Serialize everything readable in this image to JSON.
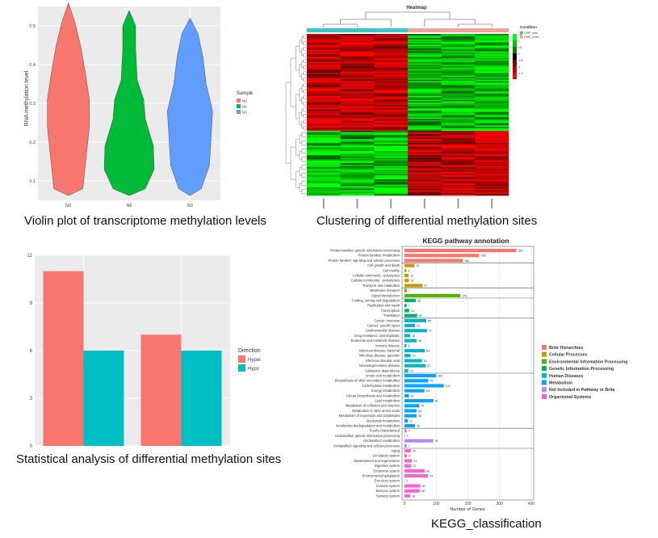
{
  "captions": {
    "violin": "Violin plot of transcriptome methylation levels",
    "heatmap": "Clustering of differential methylation sites",
    "bar": "Statistical analysis of differential methylation sites",
    "kegg": "KEGG_classification"
  },
  "chart_data": [
    {
      "type": "violin",
      "ylabel": "RNA methylation level",
      "legend_title": "Sample",
      "legend_position": "right",
      "categories": [
        "N0",
        "N6",
        "N3"
      ],
      "colors": [
        "#f8766d",
        "#00ba38",
        "#619cff"
      ],
      "ylim": [
        0.5,
        5.5
      ],
      "yticks": [
        "0.1",
        "0.2",
        "0.3",
        "0.4",
        "0.5"
      ],
      "ytick_values": [
        1,
        2,
        3,
        4,
        5
      ],
      "grid": true
    },
    {
      "type": "heatmap",
      "title": "Heatmap",
      "legend_title": "Condition",
      "condition_entries": [
        {
          "label": "OMP_case",
          "color": "#3dc6c9"
        },
        {
          "label": "OMP_control",
          "color": "#f2a29a"
        }
      ],
      "scale_labels": [
        "1.5",
        "1",
        "0.5",
        "0",
        "-0.5",
        "-1",
        "-1.5"
      ],
      "n_columns": 6,
      "n_rows": 120,
      "pattern": "left three columns red in upper block and green in lower block; right three columns the reverse"
    },
    {
      "type": "bar",
      "legend_title": "Direction",
      "legend_position": "right",
      "series": [
        {
          "name": "Hyper",
          "color": "#f8766d",
          "values": [
            11,
            7
          ]
        },
        {
          "name": "Hypo",
          "color": "#00bfc4",
          "values": [
            6,
            6
          ]
        }
      ],
      "ylim": [
        0,
        12
      ],
      "yticks": [
        0,
        3,
        6,
        9,
        12
      ],
      "grid": true
    },
    {
      "type": "bar",
      "orientation": "horizontal",
      "title": "KEGG pathway annotation",
      "xlabel": "Number of Genes",
      "xlim": [
        0,
        400
      ],
      "xticks": [
        0,
        100,
        200,
        300,
        400
      ],
      "groups": [
        {
          "name": "Brite Hierarchies",
          "color": "#f8766d",
          "items": [
            {
              "label": "Protein families: genetic information processing",
              "value": 353
            },
            {
              "label": "Protein families: metabolism",
              "value": 236
            },
            {
              "label": "Protein families: signaling and cellular processes",
              "value": 184
            }
          ]
        },
        {
          "name": "Cellular Processes",
          "color": "#c49a00",
          "items": [
            {
              "label": "Cell growth and death",
              "value": 32
            },
            {
              "label": "Cell motility",
              "value": 6
            },
            {
              "label": "Cellular community - eukaryotes",
              "value": 13
            },
            {
              "label": "Cellular community - prokaryotes",
              "value": 14
            },
            {
              "label": "Transport and catabolism",
              "value": 57
            }
          ]
        },
        {
          "name": "Environmental Information Processing",
          "color": "#53b400",
          "items": [
            {
              "label": "Membrane transport",
              "value": 7
            },
            {
              "label": "Signal transduction",
              "value": 176
            }
          ]
        },
        {
          "name": "Genetic Information Processing",
          "color": "#00b06f",
          "items": [
            {
              "label": "Folding, sorting and degradation",
              "value": 36
            },
            {
              "label": "Replication and repair",
              "value": 7
            },
            {
              "label": "Transcription",
              "value": 15
            },
            {
              "label": "Translation",
              "value": 40
            }
          ]
        },
        {
          "name": "Human Diseases",
          "color": "#00b6cb",
          "items": [
            {
              "label": "Cancer: overview",
              "value": 69
            },
            {
              "label": "Cancer: specific types",
              "value": 33
            },
            {
              "label": "Cardiovascular disease",
              "value": 71
            },
            {
              "label": "Drug resistance: antineoplastic",
              "value": 18
            },
            {
              "label": "Endocrine and metabolic disease",
              "value": 38
            },
            {
              "label": "Immune disease",
              "value": 6
            },
            {
              "label": "Infectious disease: bacterial",
              "value": 64
            },
            {
              "label": "Infectious disease: parasitic",
              "value": 19
            },
            {
              "label": "Infectious disease: viral",
              "value": 55
            },
            {
              "label": "Neurodegenerative disease",
              "value": 67
            },
            {
              "label": "Substance dependence",
              "value": 12
            }
          ]
        },
        {
          "name": "Metabolism",
          "color": "#00a5ff",
          "items": [
            {
              "label": "Amino acid metabolism",
              "value": 100
            },
            {
              "label": "Biosynthesis of other secondary metabolites",
              "value": 75
            },
            {
              "label": "Carbohydrate metabolism",
              "value": 124
            },
            {
              "label": "Energy metabolism",
              "value": 63
            },
            {
              "label": "Glycan biosynthesis and metabolism",
              "value": 14
            },
            {
              "label": "Lipid metabolism",
              "value": 91
            },
            {
              "label": "Metabolism of cofactors and vitamins",
              "value": 47
            },
            {
              "label": "Metabolism of other amino acids",
              "value": 38
            },
            {
              "label": "Metabolism of terpenoids and polyketides",
              "value": 38
            },
            {
              "label": "Nucleotide metabolism",
              "value": 11
            },
            {
              "label": "Xenobiotics biodegradation and metabolism",
              "value": 33
            }
          ]
        },
        {
          "name": "Not Included in Pathway or Brite",
          "color": "#b983ff",
          "items": [
            {
              "label": "Poorly characterized",
              "value": 7
            },
            {
              "label": "Unclassified: genetic information processing",
              "value": 2
            },
            {
              "label": "Unclassified: metabolism",
              "value": 91
            },
            {
              "label": "Unclassified: signaling and cellular processes",
              "value": 7
            }
          ]
        },
        {
          "name": "Organismal Systems",
          "color": "#fb61d7",
          "items": [
            {
              "label": "Aging",
              "value": 20
            },
            {
              "label": "Circulatory system",
              "value": 8
            },
            {
              "label": "Development and regeneration",
              "value": 24
            },
            {
              "label": "Digestive system",
              "value": 21
            },
            {
              "label": "Endocrine system",
              "value": 64
            },
            {
              "label": "Environmental adaptation",
              "value": 74
            },
            {
              "label": "Excretory system",
              "value": 1
            },
            {
              "label": "Immune system",
              "value": 50
            },
            {
              "label": "Nervous system",
              "value": 48
            },
            {
              "label": "Sensory system",
              "value": 18
            }
          ]
        }
      ]
    }
  ]
}
